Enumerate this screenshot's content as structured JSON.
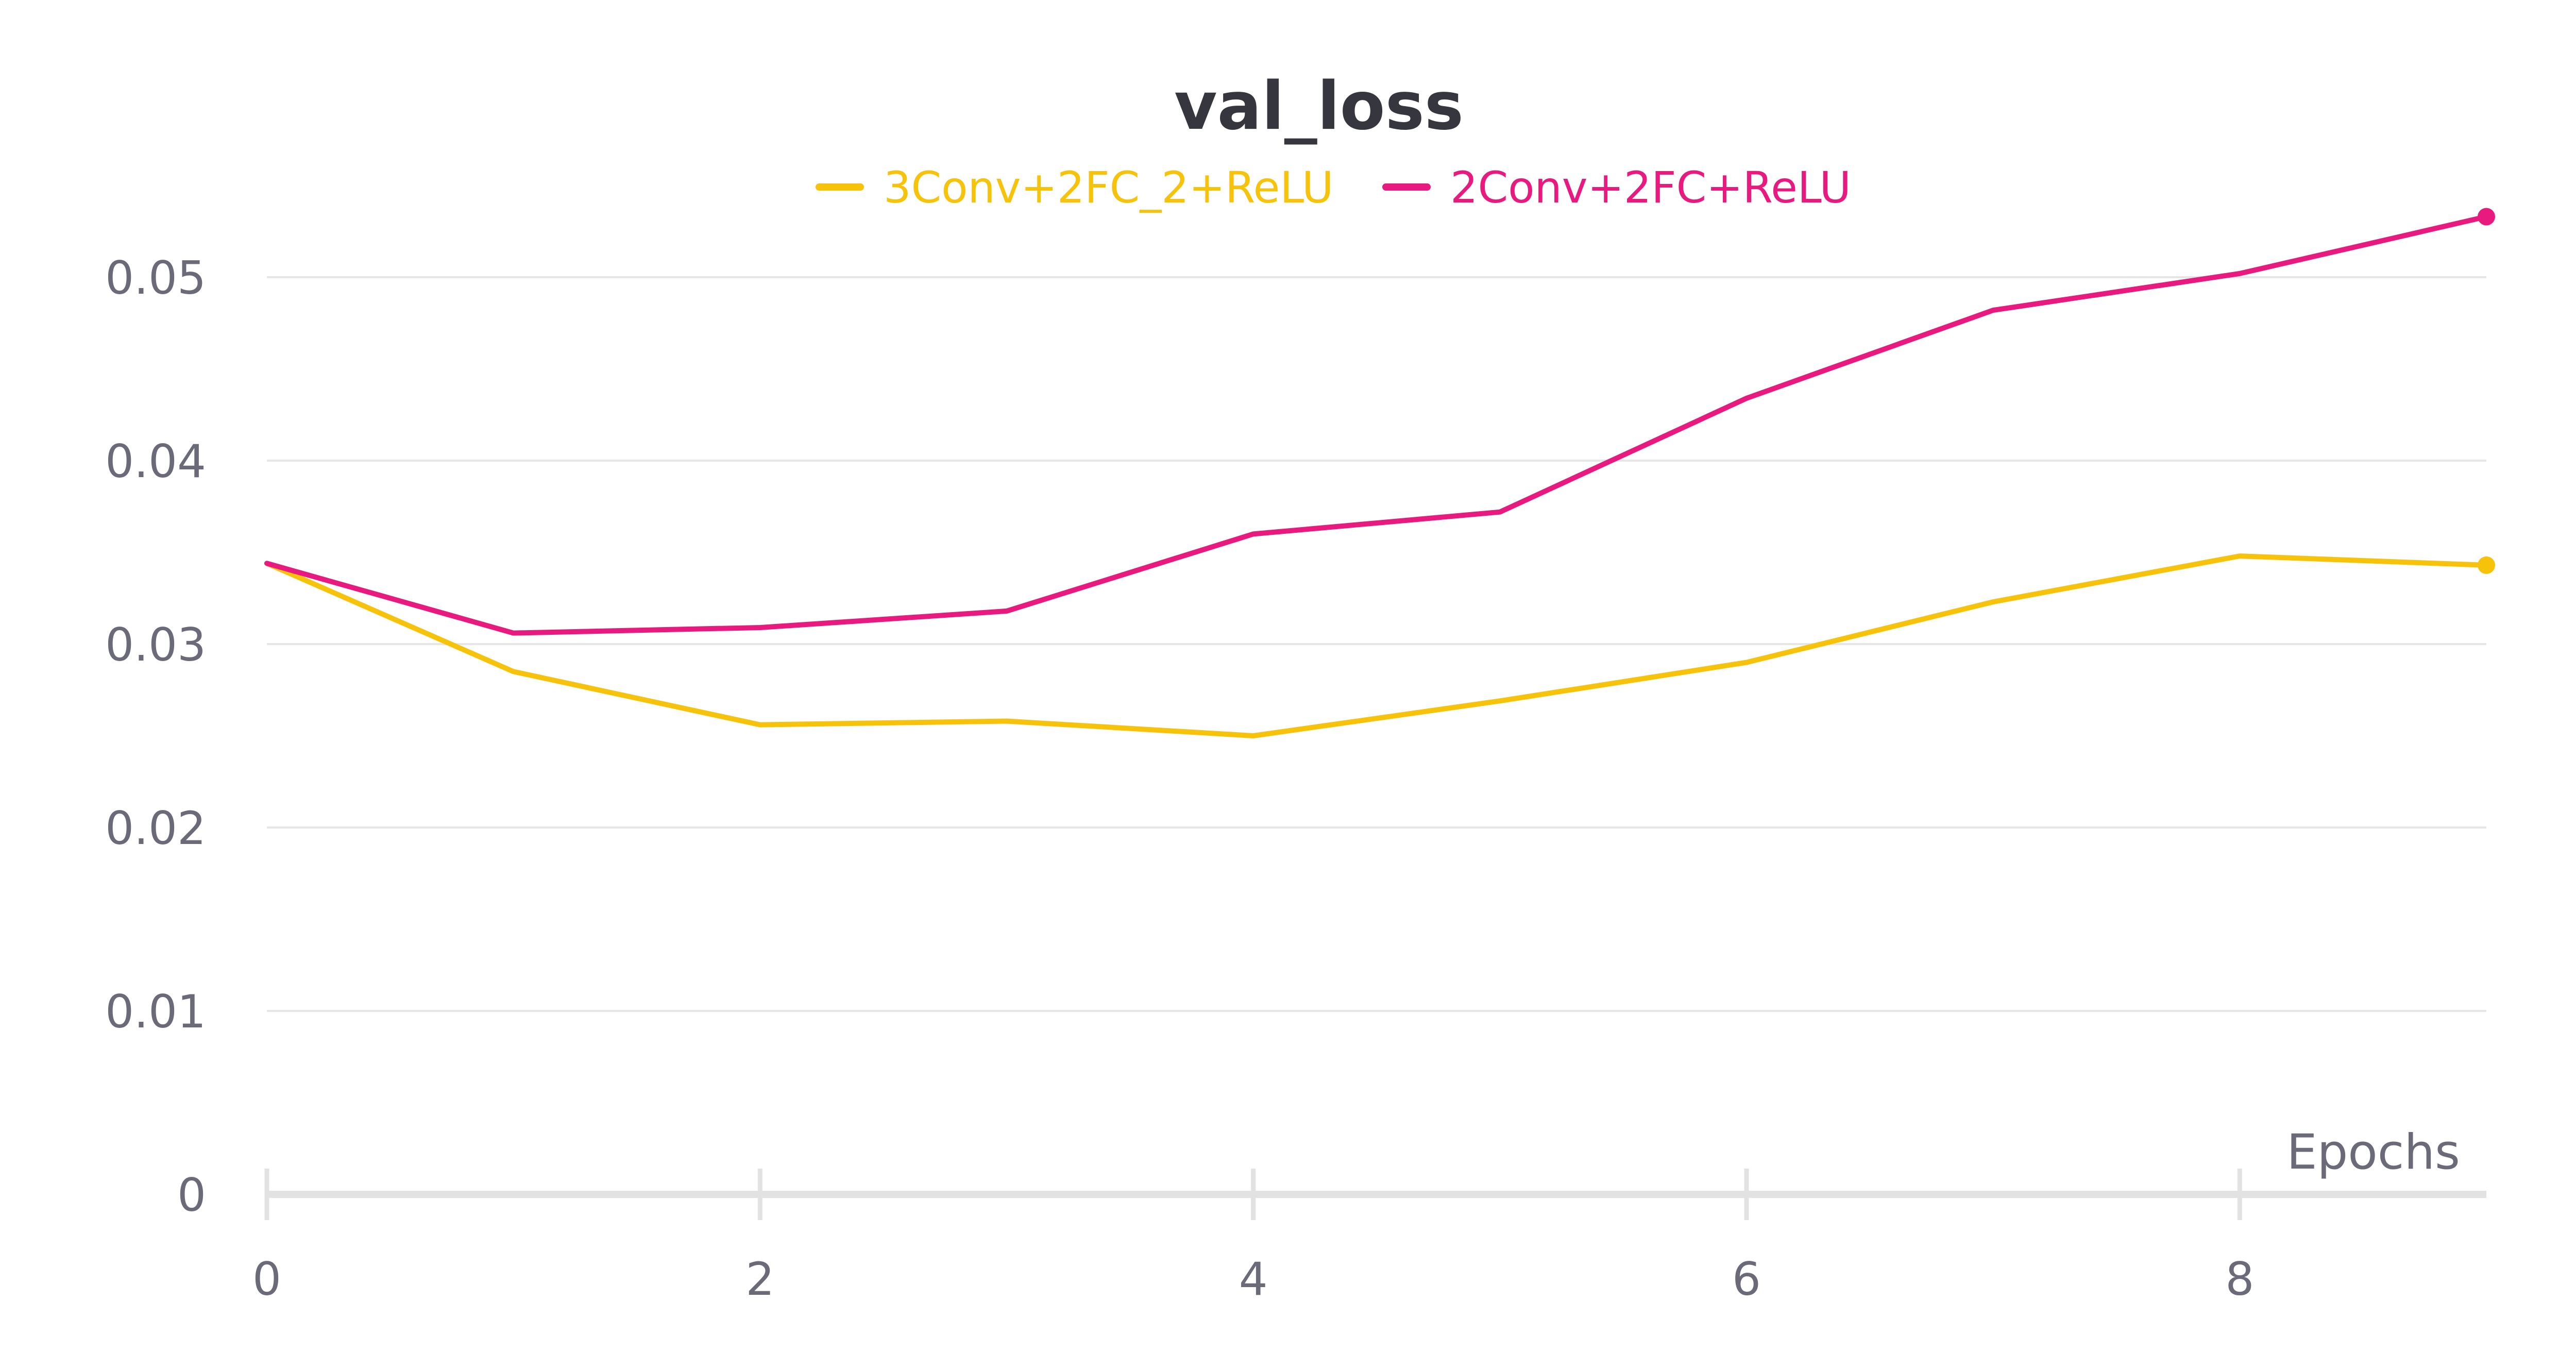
{
  "chart_data": {
    "type": "line",
    "title": "val_loss",
    "xlabel": "Epochs",
    "ylabel": "",
    "xlim": [
      0,
      9
    ],
    "ylim": [
      0,
      0.055
    ],
    "x_ticks": [
      0,
      2,
      4,
      6,
      8
    ],
    "y_ticks": [
      0,
      0.01,
      0.02,
      0.03,
      0.04,
      0.05
    ],
    "y_tick_labels": [
      "0",
      "0.01",
      "0.02",
      "0.03",
      "0.04",
      "0.05"
    ],
    "grid": "horizontal",
    "legend_position": "top-center",
    "x": [
      0,
      1,
      2,
      3,
      4,
      5,
      6,
      7,
      8,
      9
    ],
    "series": [
      {
        "name": "3Conv+2FC_2+ReLU",
        "color": "#f7c20a",
        "values": [
          0.0344,
          0.0285,
          0.0256,
          0.0258,
          0.025,
          0.0269,
          0.029,
          0.0323,
          0.0348,
          0.0343
        ]
      },
      {
        "name": "2Conv+2FC+ReLU",
        "color": "#e8197f",
        "values": [
          0.0344,
          0.0306,
          0.0309,
          0.0318,
          0.036,
          0.0372,
          0.0434,
          0.0482,
          0.0502,
          0.0533
        ]
      }
    ]
  },
  "colors": {
    "title": "#36363f",
    "axis_text": "#6a6a78",
    "grid": "#e6e6e6",
    "axis_line": "#e2e2e2"
  }
}
